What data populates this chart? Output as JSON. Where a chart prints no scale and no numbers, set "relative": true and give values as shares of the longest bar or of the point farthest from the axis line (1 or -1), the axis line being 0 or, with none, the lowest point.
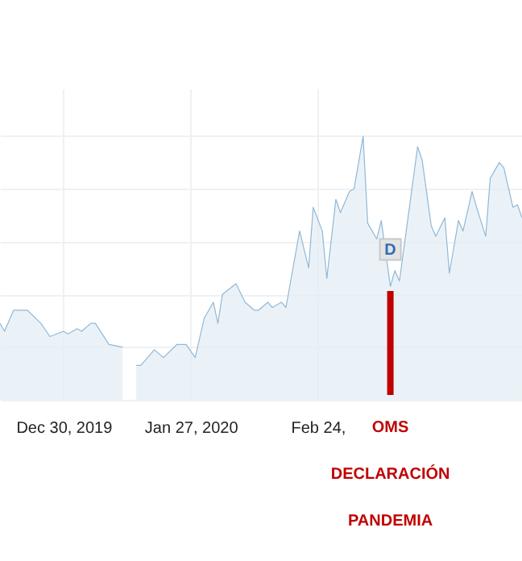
{
  "chart_data": {
    "type": "area",
    "relative": true,
    "x": [
      "2019-12-16",
      "2019-12-17",
      "2019-12-19",
      "2019-12-22",
      "2019-12-25",
      "2019-12-27",
      "2019-12-30",
      "2019-12-31",
      "2020-01-02",
      "2020-01-03",
      "2020-01-05",
      "2020-01-06",
      "2020-01-09",
      "2020-01-12",
      "2020-01-14",
      "2020-01-15",
      "2020-01-16",
      "2020-01-19",
      "2020-01-21",
      "2020-01-24",
      "2020-01-26",
      "2020-01-28",
      "2020-01-30",
      "2020-02-01",
      "2020-02-02",
      "2020-02-03",
      "2020-02-06",
      "2020-02-08",
      "2020-02-10",
      "2020-02-11",
      "2020-02-13",
      "2020-02-14",
      "2020-02-16",
      "2020-02-17",
      "2020-02-20",
      "2020-02-22",
      "2020-02-23",
      "2020-02-25",
      "2020-02-26",
      "2020-02-28",
      "2020-02-29",
      "2020-03-02",
      "2020-03-03",
      "2020-03-05",
      "2020-03-06",
      "2020-03-08",
      "2020-03-09",
      "2020-03-11",
      "2020-03-12",
      "2020-03-13",
      "2020-03-17",
      "2020-03-18",
      "2020-03-20",
      "2020-03-21",
      "2020-03-23",
      "2020-03-24",
      "2020-03-26",
      "2020-03-27",
      "2020-03-29",
      "2020-03-30",
      "2020-04-01",
      "2020-04-02",
      "2020-04-04",
      "2020-04-05",
      "2020-04-07",
      "2020-04-08",
      "2020-04-09"
    ],
    "series": [
      {
        "color": "#8fb8d8",
        "values": [
          0.29,
          0.26,
          0.34,
          0.34,
          0.29,
          0.24,
          0.26,
          0.25,
          0.27,
          0.26,
          0.29,
          0.29,
          0.21,
          0.2,
          null,
          0.13,
          0.13,
          0.19,
          0.16,
          0.21,
          0.21,
          0.16,
          0.31,
          0.37,
          0.29,
          0.4,
          0.44,
          0.37,
          0.34,
          0.34,
          0.37,
          0.35,
          0.37,
          0.35,
          0.64,
          0.5,
          0.73,
          0.64,
          0.46,
          0.76,
          0.71,
          0.79,
          0.8,
          1,
          0.67,
          0.61,
          0.68,
          0.43,
          0.49,
          0.45,
          0.96,
          0.91,
          0.66,
          0.62,
          0.69,
          0.48,
          0.68,
          0.64,
          0.79,
          0.73,
          0.62,
          0.84,
          0.9,
          0.88,
          0.73,
          0.74,
          0.69
        ]
      }
    ],
    "xlim": [
      "2019-12-16",
      "2020-04-09"
    ],
    "xticks": [
      {
        "value": "2019-12-30",
        "label": "Dec 30, 2019"
      },
      {
        "value": "2020-01-27",
        "label": "Jan 27, 2020"
      },
      {
        "value": "2020-02-24",
        "label": "Feb 24,"
      }
    ],
    "ref_lines": [
      {
        "axis": "x",
        "value": "2020-03-11",
        "label": "OMS\nDECLARACIÓN\nPANDEMIA",
        "color": "#c00000"
      }
    ],
    "annotations": [
      {
        "text": "D",
        "x": "2020-03-11",
        "y": 0.57
      }
    ],
    "grid": true
  }
}
